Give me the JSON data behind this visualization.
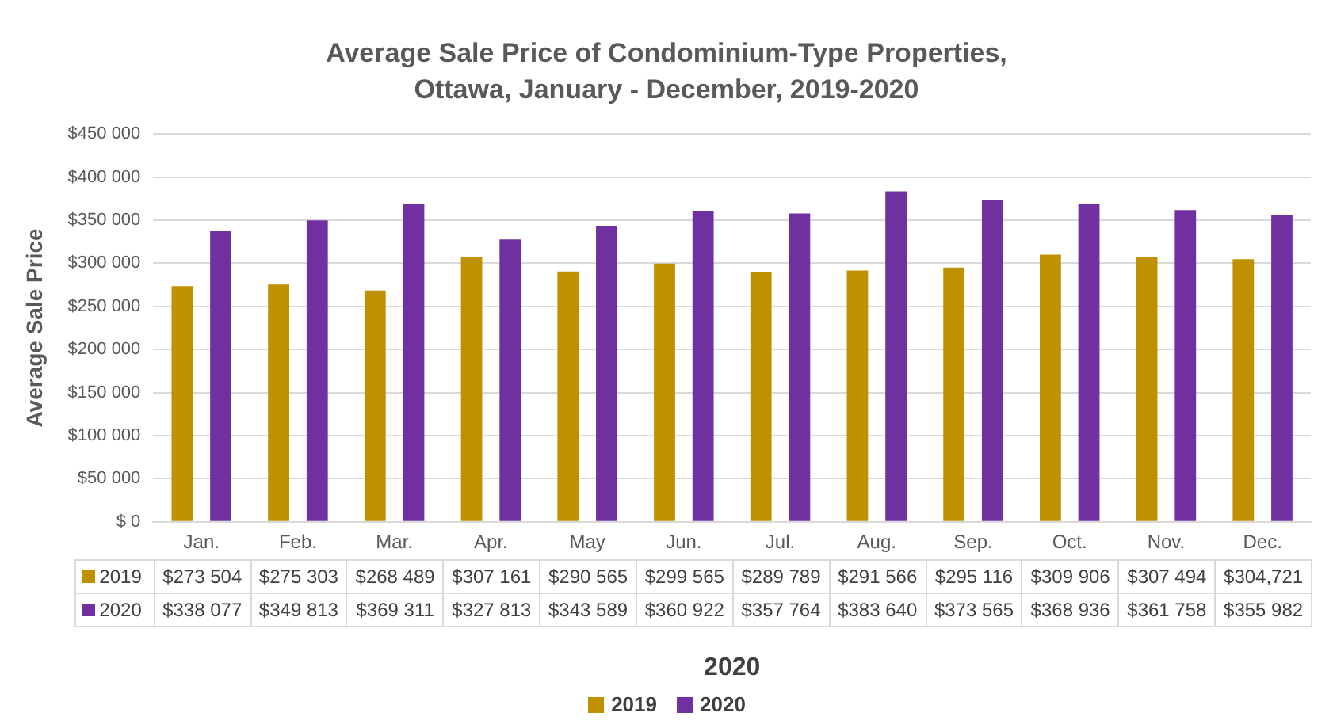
{
  "chart_data": {
    "type": "bar",
    "title": "Average Sale Price of Condominium-Type Properties, Ottawa, January - December, 2019-2020",
    "xlabel": "2020",
    "ylabel": "Average Sale Price",
    "categories": [
      "Jan.",
      "Feb.",
      "Mar.",
      "Apr.",
      "May",
      "Jun.",
      "Jul.",
      "Aug.",
      "Sep.",
      "Oct.",
      "Nov.",
      "Dec."
    ],
    "series": [
      {
        "name": "2019",
        "color": "#bf9000",
        "values": [
          273504,
          275303,
          268489,
          307161,
          290565,
          299565,
          289789,
          291566,
          295116,
          309906,
          307494,
          304721
        ],
        "value_labels": [
          "$273 504",
          "$275 303",
          "$268 489",
          "$307 161",
          "$290 565",
          "$299 565",
          "$289 789",
          "$291 566",
          "$295 116",
          "$309 906",
          "$307 494",
          "$304,721"
        ]
      },
      {
        "name": "2020",
        "color": "#7030a0",
        "values": [
          338077,
          349813,
          369311,
          327813,
          343589,
          360922,
          357764,
          383640,
          373565,
          368936,
          361758,
          355982
        ],
        "value_labels": [
          "$338 077",
          "$349 813",
          "$369 311",
          "$327 813",
          "$343 589",
          "$360 922",
          "$357 764",
          "$383 640",
          "$373 565",
          "$368 936",
          "$361 758",
          "$355 982"
        ]
      }
    ],
    "ylim": [
      0,
      450000
    ],
    "yticks": [
      {
        "value": 0,
        "label": "$ 0"
      },
      {
        "value": 50000,
        "label": "$50 000"
      },
      {
        "value": 100000,
        "label": "$100 000"
      },
      {
        "value": 150000,
        "label": "$150 000"
      },
      {
        "value": 200000,
        "label": "$200 000"
      },
      {
        "value": 250000,
        "label": "$250 000"
      },
      {
        "value": 300000,
        "label": "$300 000"
      },
      {
        "value": 350000,
        "label": "$350 000"
      },
      {
        "value": 400000,
        "label": "$400 000"
      },
      {
        "value": 450000,
        "label": "$450 000"
      }
    ],
    "grid": "y",
    "legend": "bottom"
  }
}
